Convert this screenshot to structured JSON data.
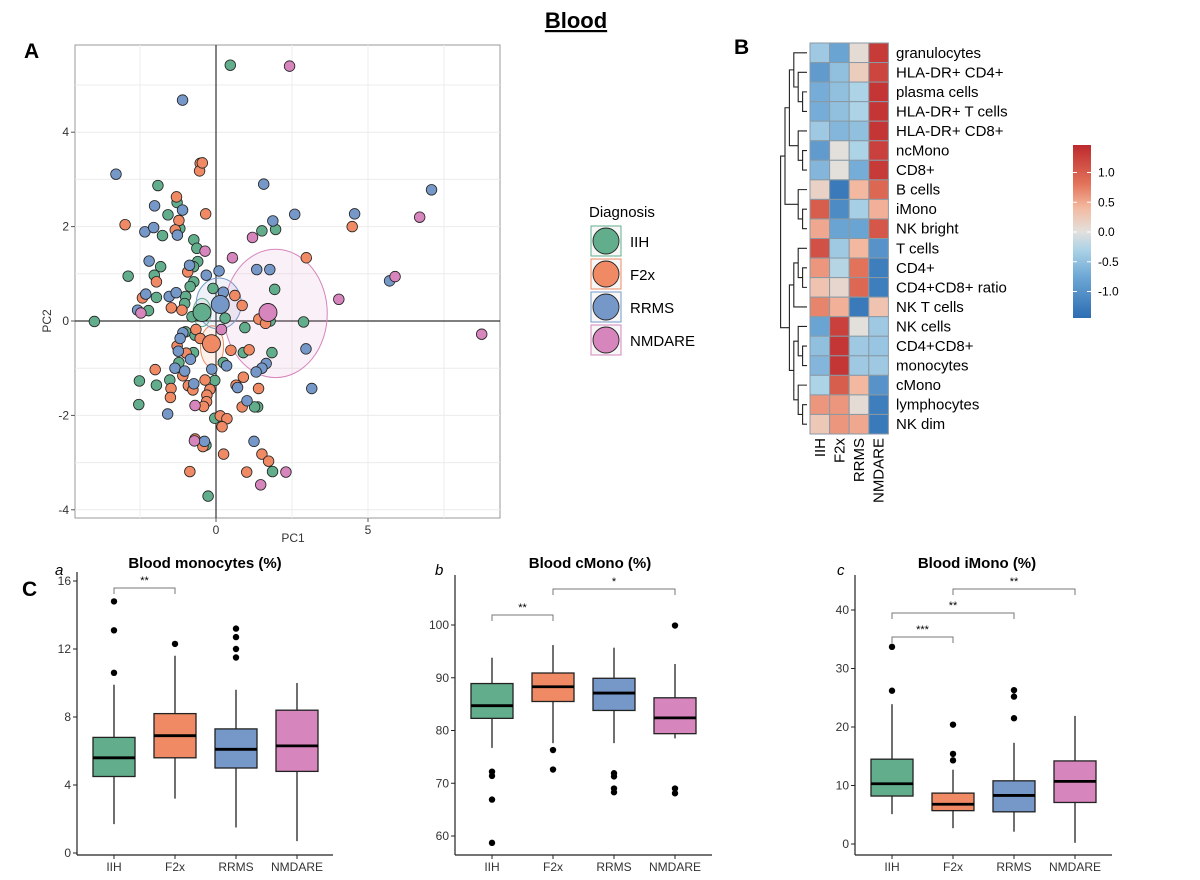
{
  "figure": {
    "title": "Blood",
    "panel_a": "A",
    "panel_b": "B",
    "panel_c": "C"
  },
  "colors": {
    "IIH": "#62ae8c",
    "F2x": "#ef8a64",
    "RRMS": "#7598c8",
    "NMDARE": "#d785bd"
  },
  "chart_data": [
    {
      "type": "scatter",
      "xlabel": "PC1",
      "ylabel": "PC2",
      "xlim": [
        -4.6,
        9.4
      ],
      "ylim": [
        -4.15,
        5.85
      ],
      "xticks": [
        "0",
        "5"
      ],
      "yticks": [
        "-4",
        "-2",
        "0",
        "2",
        "4"
      ],
      "grid": true,
      "legend": {
        "title": "Diagnosis",
        "placement": "right",
        "entries": [
          "IIH",
          "F2x",
          "RRMS",
          "NMDARE"
        ]
      },
      "series": [
        {
          "name": "IIH",
          "centroid": [
            -0.46,
            0.18
          ],
          "ellipse": {
            "center": [
              -0.46,
              0.18
            ],
            "rx": 0.3,
            "ry": 0.3
          },
          "points": [
            [
              0.47,
              5.42
            ],
            [
              -1.91,
              2.87
            ],
            [
              -1.28,
              2.51
            ],
            [
              -1.58,
              2.25
            ],
            [
              -1.76,
              1.81
            ],
            [
              -1.19,
              1.96
            ],
            [
              1.96,
              1.94
            ],
            [
              1.51,
              1.91
            ],
            [
              -0.73,
              1.72
            ],
            [
              -0.63,
              1.54
            ],
            [
              -0.6,
              1.26
            ],
            [
              -1.82,
              1.15
            ],
            [
              -0.74,
              1.15
            ],
            [
              -2.89,
              0.95
            ],
            [
              -2.03,
              0.97
            ],
            [
              -0.73,
              0.83
            ],
            [
              1.93,
              0.67
            ],
            [
              -0.85,
              0.73
            ],
            [
              -1.96,
              0.5
            ],
            [
              -1.0,
              0.52
            ],
            [
              -0.1,
              0.69
            ],
            [
              -1.03,
              0.37
            ],
            [
              -2.22,
              0.22
            ],
            [
              -0.79,
              0.09
            ],
            [
              -4.0,
              -0.01
            ],
            [
              1.78,
              0.0
            ],
            [
              0.3,
              0.06
            ],
            [
              2.88,
              -0.02
            ],
            [
              0.95,
              -0.14
            ],
            [
              -1.0,
              -0.23
            ],
            [
              -0.69,
              -0.3
            ],
            [
              -0.74,
              -0.67
            ],
            [
              0.9,
              -0.67
            ],
            [
              1.84,
              -0.67
            ],
            [
              -1.22,
              -0.88
            ],
            [
              0.24,
              -0.88
            ],
            [
              -2.52,
              -1.27
            ],
            [
              -1.96,
              -1.36
            ],
            [
              -1.52,
              -1.25
            ],
            [
              -0.04,
              -1.26
            ],
            [
              -2.54,
              -1.77
            ],
            [
              1.37,
              -1.82
            ],
            [
              1.27,
              -1.82
            ],
            [
              -0.04,
              -2.06
            ],
            [
              -0.33,
              -2.63
            ],
            [
              1.86,
              -3.19
            ],
            [
              -0.26,
              -3.71
            ]
          ]
        },
        {
          "name": "F2x",
          "centroid": [
            -0.15,
            -0.48
          ],
          "ellipse": {
            "center": [
              -0.13,
              -0.54
            ],
            "rx": 0.38,
            "ry": 0.44
          },
          "points": [
            [
              -0.52,
              3.34
            ],
            [
              -0.54,
              3.18
            ],
            [
              -0.45,
              3.35
            ],
            [
              -1.3,
              2.63
            ],
            [
              -0.34,
              2.27
            ],
            [
              -2.99,
              2.04
            ],
            [
              -1.22,
              2.13
            ],
            [
              -1.34,
              1.93
            ],
            [
              4.48,
              2.0
            ],
            [
              2.97,
              1.34
            ],
            [
              -0.93,
              1.04
            ],
            [
              -1.96,
              0.83
            ],
            [
              -2.42,
              0.49
            ],
            [
              0.62,
              0.54
            ],
            [
              0.86,
              0.33
            ],
            [
              -1.47,
              0.28
            ],
            [
              -1.12,
              0.23
            ],
            [
              1.41,
              0.04
            ],
            [
              1.63,
              -0.05
            ],
            [
              -0.66,
              -0.18
            ],
            [
              -0.52,
              -0.37
            ],
            [
              -1.28,
              -0.53
            ],
            [
              -0.98,
              -0.68
            ],
            [
              0.49,
              -0.62
            ],
            [
              1.09,
              -0.61
            ],
            [
              -2.0,
              -1.03
            ],
            [
              -1.09,
              -1.16
            ],
            [
              -0.36,
              -1.25
            ],
            [
              0.9,
              -1.19
            ],
            [
              -0.91,
              -1.37
            ],
            [
              -0.76,
              -1.46
            ],
            [
              -1.48,
              -1.43
            ],
            [
              0.66,
              -1.36
            ],
            [
              1.4,
              -1.43
            ],
            [
              -0.2,
              -1.45
            ],
            [
              -1.5,
              -1.62
            ],
            [
              -0.3,
              -1.57
            ],
            [
              -0.31,
              -1.71
            ],
            [
              -0.41,
              -1.81
            ],
            [
              0.86,
              -1.82
            ],
            [
              0.14,
              -2.01
            ],
            [
              0.36,
              -2.07
            ],
            [
              0.2,
              -2.24
            ],
            [
              -0.69,
              -2.5
            ],
            [
              -0.43,
              -2.66
            ],
            [
              0.25,
              -2.82
            ],
            [
              1.51,
              -2.82
            ],
            [
              1.73,
              -2.97
            ],
            [
              -0.86,
              -3.19
            ],
            [
              1.01,
              -3.2
            ]
          ]
        },
        {
          "name": "RRMS",
          "centroid": [
            0.14,
            0.35
          ],
          "ellipse": {
            "center": [
              0.09,
              0.37
            ],
            "rx": 0.74,
            "ry": 0.54
          },
          "points": [
            [
              -1.1,
              4.68
            ],
            [
              -3.29,
              3.11
            ],
            [
              1.57,
              2.9
            ],
            [
              7.09,
              2.78
            ],
            [
              -2.02,
              2.44
            ],
            [
              -1.1,
              2.35
            ],
            [
              2.59,
              2.26
            ],
            [
              4.56,
              2.27
            ],
            [
              -2.34,
              1.89
            ],
            [
              -2.05,
              1.98
            ],
            [
              -1.27,
              1.82
            ],
            [
              1.87,
              2.12
            ],
            [
              -2.2,
              1.27
            ],
            [
              -0.87,
              1.18
            ],
            [
              1.34,
              1.09
            ],
            [
              1.77,
              1.09
            ],
            [
              0.1,
              1.06
            ],
            [
              -0.32,
              0.97
            ],
            [
              5.71,
              0.85
            ],
            [
              -2.31,
              0.57
            ],
            [
              -1.54,
              0.52
            ],
            [
              -1.31,
              0.6
            ],
            [
              0.24,
              0.61
            ],
            [
              -2.58,
              0.23
            ],
            [
              -1.09,
              -0.25
            ],
            [
              -1.18,
              -0.37
            ],
            [
              -1.24,
              -0.64
            ],
            [
              2.96,
              -0.59
            ],
            [
              -0.84,
              -0.81
            ],
            [
              0.35,
              -0.95
            ],
            [
              1.65,
              -0.9
            ],
            [
              1.51,
              -1.0
            ],
            [
              1.32,
              -1.08
            ],
            [
              -1.35,
              -1.0
            ],
            [
              -1.03,
              -1.06
            ],
            [
              -0.14,
              -1.02
            ],
            [
              -0.73,
              -1.33
            ],
            [
              0.71,
              -1.41
            ],
            [
              3.15,
              -1.43
            ],
            [
              -1.59,
              -1.97
            ],
            [
              1.02,
              -1.69
            ],
            [
              -0.38,
              -2.55
            ],
            [
              1.25,
              -2.55
            ]
          ]
        },
        {
          "name": "NMDARE",
          "centroid": [
            1.71,
            0.18
          ],
          "ellipse": {
            "center": [
              1.96,
              0.16
            ],
            "rx": 1.7,
            "ry": 1.36
          },
          "points": [
            [
              2.42,
              5.4
            ],
            [
              6.7,
              2.2
            ],
            [
              1.2,
              1.77
            ],
            [
              -0.36,
              1.48
            ],
            [
              0.54,
              1.34
            ],
            [
              5.89,
              0.94
            ],
            [
              4.04,
              0.46
            ],
            [
              -2.47,
              0.17
            ],
            [
              8.74,
              -0.28
            ],
            [
              0.18,
              -0.18
            ],
            [
              -0.69,
              -1.79
            ],
            [
              -0.71,
              -2.54
            ],
            [
              2.3,
              -3.2
            ],
            [
              1.47,
              -3.47
            ]
          ]
        }
      ]
    },
    {
      "type": "heatmap",
      "columns": [
        "IIH",
        "F2x",
        "RRMS",
        "NMDARE"
      ],
      "rows": [
        "granulocytes",
        "HLA-DR+ CD4+",
        "plasma cells",
        "HLA-DR+ T cells",
        "HLA-DR+ CD8+",
        "ncMono",
        "CD8+",
        "B cells",
        "iMono",
        "NK bright",
        "T cells",
        "CD4+",
        "CD4+CD8+ ratio",
        "NK T cells",
        "NK cells",
        "CD4+CD8+",
        "monocytes",
        "cMono",
        "lymphocytes",
        "NK dim"
      ],
      "values": [
        [
          -0.4,
          -0.8,
          0.05,
          1.3
        ],
        [
          -0.9,
          -0.5,
          0.2,
          1.2
        ],
        [
          -0.7,
          -0.5,
          -0.3,
          1.35
        ],
        [
          -0.7,
          -0.5,
          -0.3,
          1.35
        ],
        [
          -0.4,
          -0.6,
          -0.5,
          1.35
        ],
        [
          -0.9,
          0.0,
          -0.3,
          1.25
        ],
        [
          -0.6,
          0.0,
          -0.7,
          1.3
        ],
        [
          0.15,
          -1.3,
          0.4,
          0.9
        ],
        [
          1.0,
          -1.1,
          -0.35,
          0.45
        ],
        [
          0.5,
          -0.8,
          -0.8,
          1.05
        ],
        [
          1.1,
          -0.4,
          0.4,
          -1.0
        ],
        [
          0.6,
          -0.25,
          0.8,
          -1.25
        ],
        [
          0.3,
          0.1,
          0.9,
          -1.25
        ],
        [
          0.7,
          0.45,
          -1.3,
          0.3
        ],
        [
          -0.8,
          1.25,
          0.0,
          -0.4
        ],
        [
          -0.5,
          1.35,
          -0.4,
          -0.45
        ],
        [
          -0.6,
          1.35,
          -0.4,
          -0.4
        ],
        [
          -0.3,
          1.0,
          0.4,
          -1.0
        ],
        [
          0.6,
          0.6,
          0.05,
          -1.25
        ],
        [
          0.25,
          0.6,
          0.5,
          -1.3
        ]
      ],
      "color_scale": {
        "range": [
          -1.45,
          1.45
        ],
        "ticks": [
          "1.0",
          "0.5",
          "0.0",
          "-0.5",
          "-1.0"
        ],
        "low": "#2c6db2",
        "mid": "#e3e0dc",
        "high": "#be2a2e"
      },
      "legend": "right"
    },
    {
      "type": "box",
      "label": "a",
      "title": "Blood monocytes (%)",
      "categories": [
        "IIH",
        "F2x",
        "RRMS",
        "NMDARE"
      ],
      "yticks": [
        0,
        4,
        8,
        12,
        16
      ],
      "boxes": [
        {
          "whisker_low": 1.7,
          "q1": 4.5,
          "median": 5.6,
          "q3": 6.8,
          "whisker_high": 9.9,
          "outliers": [
            10.6,
            13.1,
            14.8
          ]
        },
        {
          "whisker_low": 3.2,
          "q1": 5.6,
          "median": 6.9,
          "q3": 8.2,
          "whisker_high": 11.6,
          "outliers": [
            12.3
          ]
        },
        {
          "whisker_low": 1.5,
          "q1": 5.0,
          "median": 6.1,
          "q3": 7.3,
          "whisker_high": 9.6,
          "outliers": [
            11.5,
            12.0,
            12.7,
            13.2
          ]
        },
        {
          "whisker_low": 0.7,
          "q1": 4.8,
          "median": 6.3,
          "q3": 8.4,
          "whisker_high": 10.0,
          "outliers": []
        }
      ],
      "significance": [
        {
          "from": "IIH",
          "to": "F2x",
          "label": "**"
        }
      ]
    },
    {
      "type": "box",
      "label": "b",
      "title": "Blood cMono (%)",
      "categories": [
        "IIH",
        "F2x",
        "RRMS",
        "NMDARE"
      ],
      "yticks": [
        60,
        70,
        80,
        90,
        100
      ],
      "boxes": [
        {
          "whisker_low": 76.7,
          "q1": 82.3,
          "median": 84.7,
          "q3": 88.9,
          "whisker_high": 93.8,
          "outliers": [
            72.2,
            71.4,
            66.9,
            58.7
          ]
        },
        {
          "whisker_low": 77.6,
          "q1": 85.5,
          "median": 88.3,
          "q3": 90.9,
          "whisker_high": 96.2,
          "outliers": [
            76.3,
            72.6
          ]
        },
        {
          "whisker_low": 77.6,
          "q1": 83.8,
          "median": 87.1,
          "q3": 89.9,
          "whisker_high": 95.7,
          "outliers": [
            71.9,
            71.3,
            69.0,
            68.3
          ]
        },
        {
          "whisker_low": 78.5,
          "q1": 79.4,
          "median": 82.4,
          "q3": 86.2,
          "whisker_high": 92.6,
          "outliers": [
            99.9,
            69.0,
            68.1
          ]
        }
      ],
      "significance": [
        {
          "from": "IIH",
          "to": "F2x",
          "label": "**"
        },
        {
          "from": "F2x",
          "to": "NMDARE",
          "label": "*"
        }
      ]
    },
    {
      "type": "box",
      "label": "c",
      "title": "Blood iMono (%)",
      "categories": [
        "IIH",
        "F2x",
        "RRMS",
        "NMDARE"
      ],
      "yticks": [
        0,
        10,
        20,
        30,
        40
      ],
      "boxes": [
        {
          "whisker_low": 5.1,
          "q1": 8.2,
          "median": 10.3,
          "q3": 14.5,
          "whisker_high": 23.9,
          "outliers": [
            26.2,
            33.7
          ]
        },
        {
          "whisker_low": 2.7,
          "q1": 5.7,
          "median": 6.8,
          "q3": 8.7,
          "whisker_high": 12.7,
          "outliers": [
            14.3,
            15.4,
            20.4
          ]
        },
        {
          "whisker_low": 2.1,
          "q1": 5.5,
          "median": 8.3,
          "q3": 10.8,
          "whisker_high": 17.3,
          "outliers": [
            21.5,
            25.2,
            26.3
          ]
        },
        {
          "whisker_low": 0.2,
          "q1": 7.1,
          "median": 10.7,
          "q3": 14.2,
          "whisker_high": 21.9,
          "outliers": []
        }
      ],
      "significance": [
        {
          "from": "IIH",
          "to": "F2x",
          "label": "***"
        },
        {
          "from": "IIH",
          "to": "RRMS",
          "label": "**"
        },
        {
          "from": "F2x",
          "to": "NMDARE",
          "label": "**"
        }
      ]
    }
  ]
}
